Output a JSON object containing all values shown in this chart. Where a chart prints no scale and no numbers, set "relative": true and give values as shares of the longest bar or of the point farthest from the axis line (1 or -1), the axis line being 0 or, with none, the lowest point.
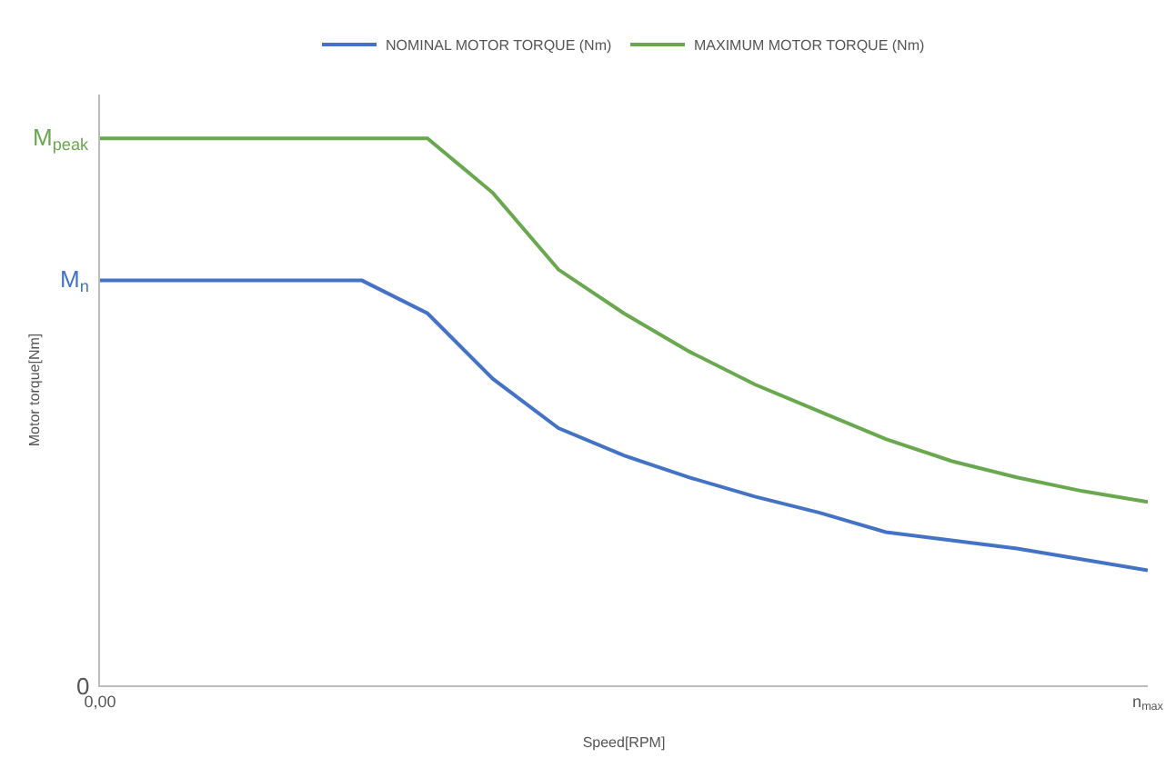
{
  "chart_data": {
    "type": "line",
    "xlabel": "Speed[RPM]",
    "ylabel": "Motor torque[Nm]",
    "categories": [
      "0,00",
      null,
      null,
      null,
      null,
      null,
      null,
      null,
      null,
      null,
      null,
      null,
      null,
      null,
      null,
      null,
      "n$_{max}$"
    ],
    "series": [
      {
        "name": "NOMINAL MOTOR TORQUE (Nm)",
        "color": "#4472c4",
        "values": [
          0.74,
          0.74,
          0.74,
          0.74,
          0.74,
          0.68,
          0.56,
          0.47,
          0.42,
          0.38,
          0.345,
          0.315,
          0.28,
          0.265,
          0.25,
          0.23,
          0.21
        ]
      },
      {
        "name": "MAXIMUM MOTOR TORQUE (Nm)",
        "color": "#6aa84f",
        "values": [
          1,
          1,
          1,
          1,
          1,
          1,
          0.9,
          0.76,
          0.68,
          0.61,
          0.55,
          0.5,
          0.45,
          0.41,
          0.38,
          0.355,
          0.335
        ]
      }
    ],
    "relative": true,
    "annotations": [
      "M$_{peak}$",
      "M$_{n}$",
      "0"
    ],
    "legend": "top",
    "marker": "none",
    "line_style": "solid"
  }
}
